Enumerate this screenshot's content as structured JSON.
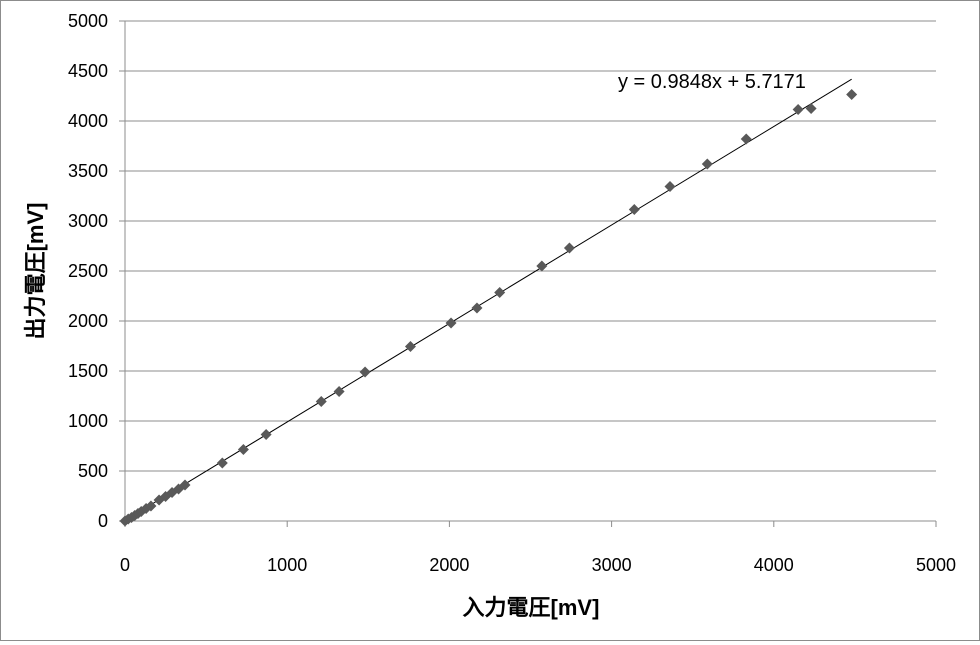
{
  "chart_data": {
    "type": "scatter",
    "xlabel": "入力電圧[mV]",
    "ylabel": "出力電圧[mV]",
    "xlim": [
      0,
      5000
    ],
    "ylim": [
      0,
      5000
    ],
    "x_ticks": [
      0,
      1000,
      2000,
      3000,
      4000,
      5000
    ],
    "y_ticks": [
      0,
      500,
      1000,
      1500,
      2000,
      2500,
      3000,
      3500,
      4000,
      4500,
      5000
    ],
    "grid": "horizontal",
    "legend": "none",
    "marker": "diamond",
    "marker_color": "#595959",
    "series": [
      {
        "points": [
          [
            0,
            0
          ],
          [
            20,
            20
          ],
          [
            40,
            35
          ],
          [
            60,
            55
          ],
          [
            80,
            75
          ],
          [
            100,
            95
          ],
          [
            130,
            125
          ],
          [
            160,
            150
          ],
          [
            210,
            210
          ],
          [
            250,
            245
          ],
          [
            290,
            285
          ],
          [
            330,
            320
          ],
          [
            370,
            360
          ],
          [
            600,
            580
          ],
          [
            730,
            715
          ],
          [
            870,
            865
          ],
          [
            1210,
            1195
          ],
          [
            1320,
            1295
          ],
          [
            1480,
            1490
          ],
          [
            1760,
            1745
          ],
          [
            2010,
            1980
          ],
          [
            2170,
            2130
          ],
          [
            2310,
            2285
          ],
          [
            2570,
            2550
          ],
          [
            2740,
            2730
          ],
          [
            3140,
            3115
          ],
          [
            3360,
            3345
          ],
          [
            3590,
            3570
          ],
          [
            3830,
            3820
          ],
          [
            4150,
            4115
          ],
          [
            4230,
            4125
          ],
          [
            4480,
            4265
          ]
        ]
      }
    ],
    "trendline": {
      "slope": 0.9848,
      "intercept": 5.7171,
      "x_range": [
        0,
        4480
      ],
      "color": "#000000",
      "equation_label": "y = 0.9848x + 5.7171"
    }
  }
}
